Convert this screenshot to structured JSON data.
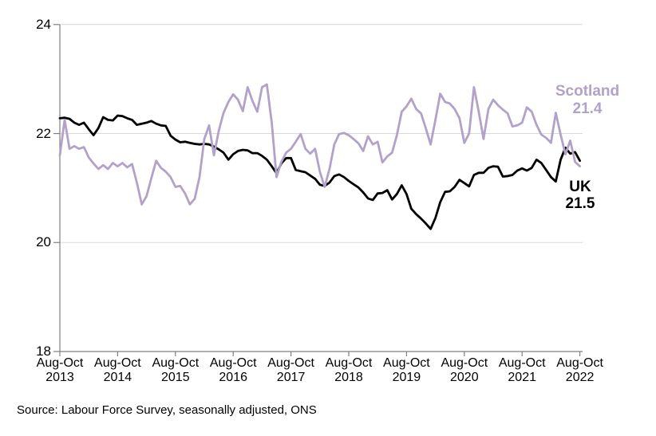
{
  "source_note": "Source: Labour Force Survey, seasonally adjusted, ONS",
  "colors": {
    "background": "#FFFFFF",
    "gridline": "#D9D9D9",
    "axis": "#7F7F7F",
    "uk_line": "#000000",
    "scotland_line": "#B2A2C9"
  },
  "chart_data": {
    "type": "line",
    "title": "",
    "xlabel": "",
    "ylabel": "",
    "ylim": [
      18,
      24
    ],
    "yticks": [
      18,
      20,
      22,
      24
    ],
    "ytick_labels": [
      "18",
      "20",
      "22",
      "24"
    ],
    "grid": true,
    "legend_position": "end-of-line labels at right",
    "x_axis": {
      "period_label": "Aug-Oct",
      "years": [
        "2013",
        "2014",
        "2015",
        "2016",
        "2017",
        "2018",
        "2019",
        "2020",
        "2021",
        "2022"
      ],
      "first_period": "Aug-Oct 2013",
      "last_period": "Aug-Oct 2022",
      "points_per_series": 109
    },
    "series": [
      {
        "name": "UK",
        "color": "#000000",
        "end_label": "UK",
        "end_value": 21.5,
        "end_value_label": "21.5",
        "values": [
          22.28,
          22.29,
          22.27,
          22.2,
          22.16,
          22.2,
          22.08,
          21.97,
          22.1,
          22.3,
          22.25,
          22.24,
          22.33,
          22.32,
          22.28,
          22.25,
          22.16,
          22.18,
          22.2,
          22.23,
          22.18,
          22.15,
          22.14,
          21.96,
          21.89,
          21.84,
          21.85,
          21.83,
          21.81,
          21.8,
          21.81,
          21.8,
          21.76,
          21.71,
          21.65,
          21.52,
          21.62,
          21.68,
          21.7,
          21.69,
          21.64,
          21.64,
          21.59,
          21.52,
          21.4,
          21.27,
          21.45,
          21.55,
          21.55,
          21.33,
          21.31,
          21.29,
          21.23,
          21.17,
          21.06,
          21.04,
          21.1,
          21.22,
          21.25,
          21.2,
          21.13,
          21.07,
          21.01,
          20.92,
          20.81,
          20.78,
          20.9,
          20.91,
          20.96,
          20.79,
          20.89,
          21.05,
          20.89,
          20.62,
          20.52,
          20.44,
          20.35,
          20.25,
          20.45,
          20.74,
          20.93,
          20.94,
          21.02,
          21.15,
          21.09,
          21.03,
          21.24,
          21.28,
          21.28,
          21.37,
          21.4,
          21.39,
          21.21,
          21.22,
          21.24,
          21.32,
          21.36,
          21.32,
          21.37,
          21.52,
          21.46,
          21.33,
          21.2,
          21.12,
          21.52,
          21.74,
          21.63,
          21.66,
          21.5
        ]
      },
      {
        "name": "Scotland",
        "color": "#B2A2C9",
        "end_label": "Scotland",
        "end_value": 21.4,
        "end_value_label": "21.4",
        "values": [
          21.6,
          22.25,
          21.72,
          21.77,
          21.72,
          21.75,
          21.56,
          21.45,
          21.35,
          21.42,
          21.35,
          21.46,
          21.4,
          21.46,
          21.38,
          21.44,
          21.1,
          20.7,
          20.85,
          21.18,
          21.5,
          21.37,
          21.3,
          21.2,
          21.02,
          21.04,
          20.9,
          20.7,
          20.8,
          21.2,
          21.9,
          22.15,
          21.6,
          22.05,
          22.38,
          22.58,
          22.72,
          22.62,
          22.41,
          22.85,
          22.6,
          22.4,
          22.85,
          22.9,
          22.2,
          21.2,
          21.48,
          21.65,
          21.72,
          21.85,
          21.99,
          21.72,
          21.63,
          21.72,
          21.3,
          21.02,
          21.35,
          21.8,
          21.99,
          22.01,
          21.97,
          21.9,
          21.82,
          21.68,
          21.95,
          21.8,
          21.85,
          21.47,
          21.58,
          21.65,
          21.97,
          22.4,
          22.5,
          22.64,
          22.45,
          22.37,
          22.1,
          21.8,
          22.25,
          22.73,
          22.58,
          22.55,
          22.45,
          22.28,
          21.83,
          22.0,
          22.85,
          22.4,
          21.9,
          22.45,
          22.62,
          22.52,
          22.44,
          22.37,
          22.13,
          22.15,
          22.2,
          22.48,
          22.4,
          22.16,
          21.98,
          21.92,
          21.83,
          22.38,
          21.98,
          21.62,
          21.87,
          21.48,
          21.4
        ]
      }
    ]
  }
}
